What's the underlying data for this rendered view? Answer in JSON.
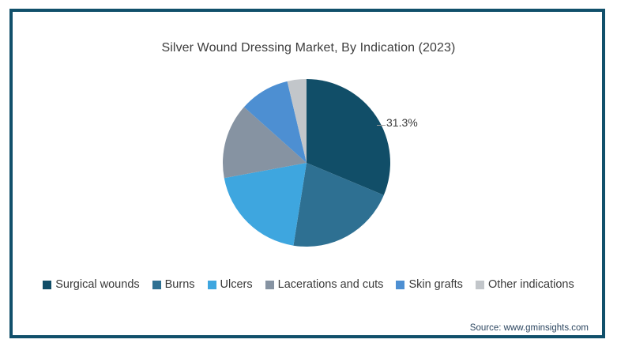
{
  "frame": {
    "border_color": "#11506B",
    "background_color": "#ffffff"
  },
  "chart_data": {
    "type": "pie",
    "title": "Silver Wound Dressing Market, By Indication (2023)",
    "start_angle_deg": 0,
    "direction": "clockwise",
    "radius_px": 106,
    "legend_position": "bottom",
    "data_labels_shown": [
      "31.3%"
    ],
    "slices": [
      {
        "label": "Surgical wounds",
        "value": 31.3,
        "color": "#114E68",
        "data_label": "31.3%"
      },
      {
        "label": "Burns",
        "value": 21.2,
        "color": "#2E7092"
      },
      {
        "label": "Ulcers",
        "value": 19.6,
        "color": "#3EA6DF"
      },
      {
        "label": "Lacerations and cuts",
        "value": 14.5,
        "color": "#8693A2"
      },
      {
        "label": "Skin grafts",
        "value": 9.7,
        "color": "#4D8FD2"
      },
      {
        "label": "Other indications",
        "value": 3.7,
        "color": "#C2C6CA"
      }
    ]
  },
  "source": "Source: www.gminsights.com",
  "text_colors": {
    "title": "#3d3d3d",
    "legend": "#3a3a3a",
    "data_label": "#3a3a3a",
    "source": "#2c4660"
  }
}
